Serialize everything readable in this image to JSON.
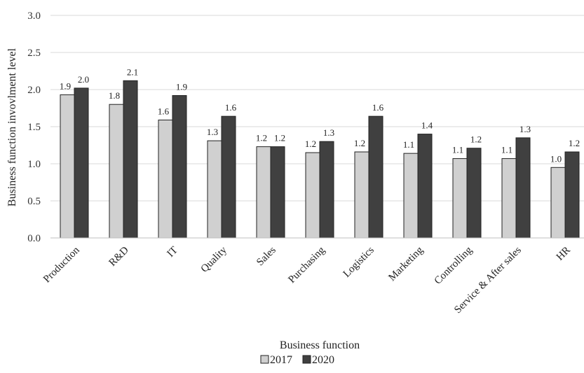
{
  "chart_data": {
    "type": "bar",
    "xlabel": "Business function",
    "ylabel": "Business function invovlment level",
    "ylim": [
      0,
      3.0
    ],
    "yticks": [
      "0.0",
      "0.5",
      "1.0",
      "1.5",
      "2.0",
      "2.5",
      "3.0"
    ],
    "grid": true,
    "legend_position": "bottom",
    "categories": [
      "Production",
      "R&D",
      "IT",
      "Quality",
      "Sales",
      "Purchasing",
      "Logistics",
      "Marketing",
      "Controlling",
      "Service & After sales",
      "HR"
    ],
    "series": [
      {
        "name": "2017",
        "color": "#d0d0d0",
        "values": [
          1.93,
          1.8,
          1.59,
          1.31,
          1.23,
          1.15,
          1.16,
          1.14,
          1.07,
          1.07,
          0.95
        ],
        "labels": [
          "1.9",
          "1.8",
          "1.6",
          "1.3",
          "1.2",
          "1.2",
          "1.2",
          "1.1",
          "1.1",
          "1.1",
          "1.0"
        ]
      },
      {
        "name": "2020",
        "color": "#404040",
        "values": [
          2.02,
          2.12,
          1.92,
          1.64,
          1.23,
          1.3,
          1.64,
          1.4,
          1.21,
          1.35,
          1.16
        ],
        "labels": [
          "2.0",
          "2.1",
          "1.9",
          "1.6",
          "1.2",
          "1.3",
          "1.6",
          "1.4",
          "1.2",
          "1.3",
          "1.2"
        ]
      }
    ]
  }
}
